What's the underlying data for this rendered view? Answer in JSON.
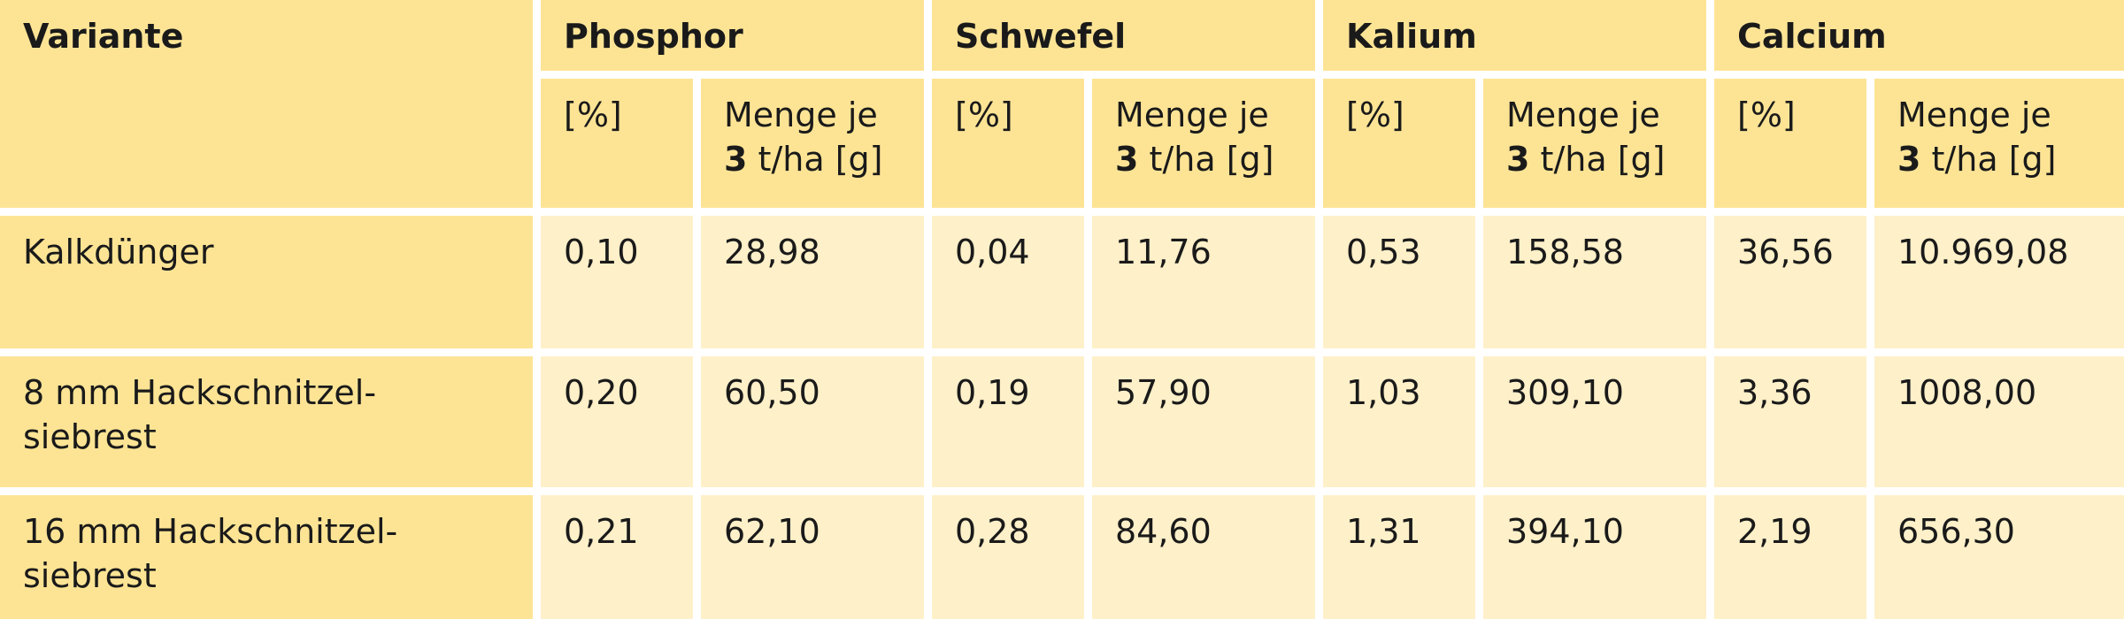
{
  "table": {
    "corner": "Variante",
    "groups": [
      {
        "name": "Phosphor",
        "unit": "[%]",
        "amount": {
          "pre": "Menge je",
          "num": "3",
          "post": "t/ha [g]"
        }
      },
      {
        "name": "Schwefel",
        "unit": "[%]",
        "amount": {
          "pre": "Menge je",
          "num": "3",
          "post": "t/ha [g]"
        }
      },
      {
        "name": "Kalium",
        "unit": "[%]",
        "amount": {
          "pre": "Menge je",
          "num": "3",
          "post": "t/ha [g]"
        }
      },
      {
        "name": "Calcium",
        "unit": "[%]",
        "amount": {
          "pre": "Menge je",
          "num": "3",
          "post": "t/ha [g]"
        }
      }
    ],
    "rows": [
      {
        "label": "Kalkdünger",
        "cells": [
          "0,10",
          "28,98",
          "0,04",
          "11,76",
          "0,53",
          "158,58",
          "36,56",
          "10.969,08"
        ]
      },
      {
        "label": "8 mm Hackschnitzel-\nsiebrest",
        "cells": [
          "0,20",
          "60,50",
          "0,19",
          "57,90",
          "1,03",
          "309,10",
          "3,36",
          "1008,00"
        ]
      },
      {
        "label": "16 mm Hackschnitzel-\nsiebrest",
        "cells": [
          "0,21",
          "62,10",
          "0,28",
          "84,60",
          "1,31",
          "394,10",
          "2,19",
          "656,30"
        ]
      }
    ]
  }
}
